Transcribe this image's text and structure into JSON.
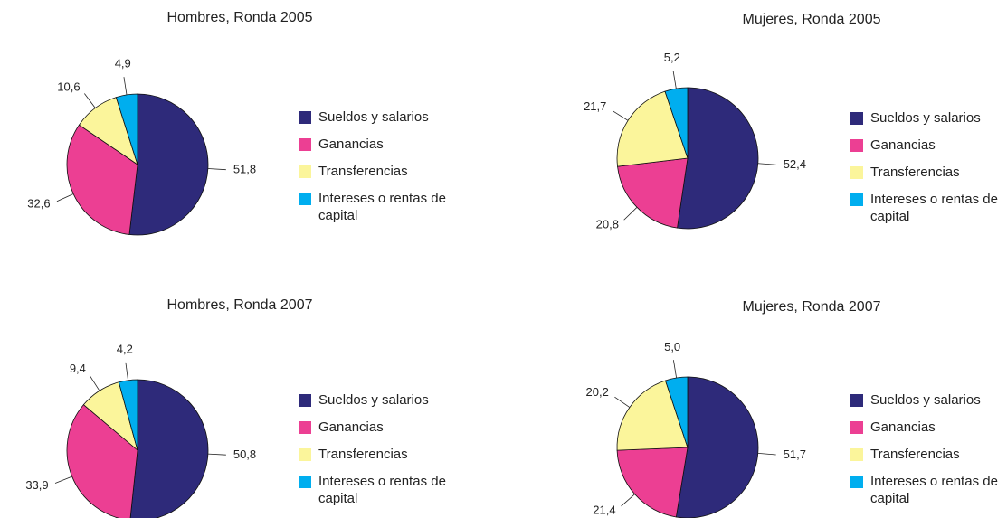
{
  "chart_data": [
    {
      "type": "pie",
      "title": "Hombres, Ronda 2005",
      "categories": [
        "Sueldos y salarios",
        "Ganancias",
        "Transferencias",
        "Intereses o rentas de capital"
      ],
      "values": [
        51.8,
        32.6,
        10.6,
        4.9
      ],
      "value_labels": [
        "51,8",
        "32,6",
        "10,6",
        "4,9"
      ],
      "colors": [
        "#2e2a7a",
        "#ec3f93",
        "#fbf59b",
        "#00aeef"
      ]
    },
    {
      "type": "pie",
      "title": "Mujeres, Ronda 2005",
      "categories": [
        "Sueldos y salarios",
        "Ganancias",
        "Transferencias",
        "Intereses o rentas de capital"
      ],
      "values": [
        52.4,
        20.8,
        21.7,
        5.2
      ],
      "value_labels": [
        "52,4",
        "20,8",
        "21,7",
        "5,2"
      ],
      "colors": [
        "#2e2a7a",
        "#ec3f93",
        "#fbf59b",
        "#00aeef"
      ]
    },
    {
      "type": "pie",
      "title": "Hombres, Ronda 2007",
      "categories": [
        "Sueldos y salarios",
        "Ganancias",
        "Transferencias",
        "Intereses o rentas de capital"
      ],
      "values": [
        50.8,
        33.9,
        9.4,
        4.2
      ],
      "value_labels": [
        "50,8",
        "33,9",
        "9,4",
        "4,2"
      ],
      "colors": [
        "#2e2a7a",
        "#ec3f93",
        "#fbf59b",
        "#00aeef"
      ]
    },
    {
      "type": "pie",
      "title": "Mujeres, Ronda 2007",
      "categories": [
        "Sueldos y salarios",
        "Ganancias",
        "Transferencias",
        "Intereses o rentas de capital"
      ],
      "values": [
        51.7,
        21.4,
        20.2,
        5.0
      ],
      "value_labels": [
        "51,7",
        "21,4",
        "20,2",
        "5,0"
      ],
      "colors": [
        "#2e2a7a",
        "#ec3f93",
        "#fbf59b",
        "#00aeef"
      ]
    }
  ]
}
